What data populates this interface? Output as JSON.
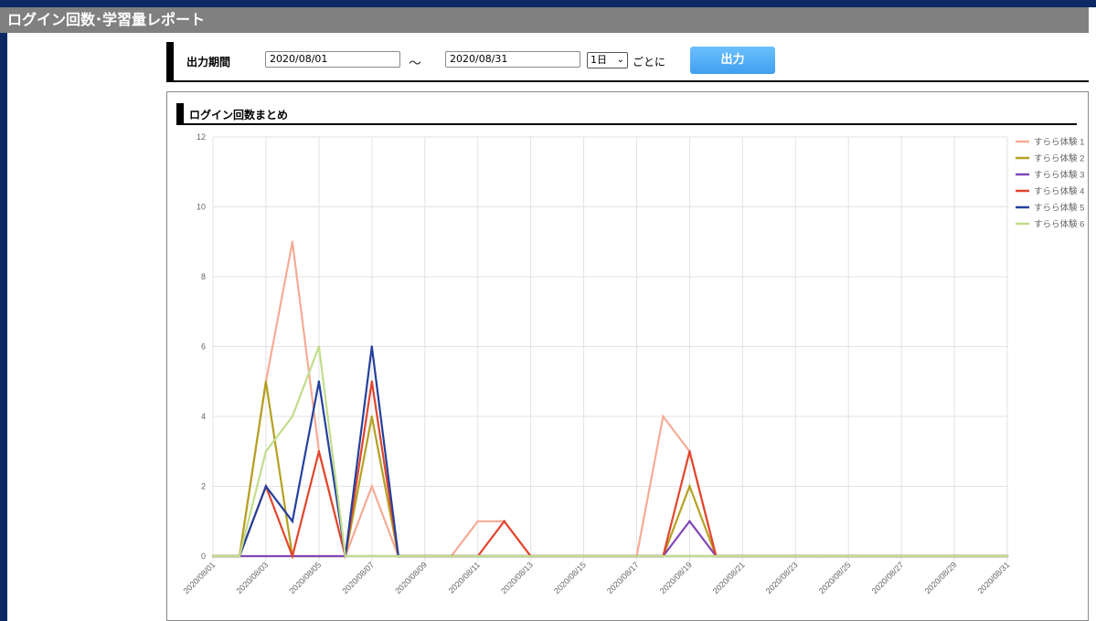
{
  "page": {
    "title": "ログイン回数･学習量レポート"
  },
  "filter": {
    "period_label": "出力期間",
    "start_date": "2020/08/01",
    "tilde": "～",
    "end_date": "2020/08/31",
    "interval_value": "1日",
    "per_label": "ごとに",
    "output_button": "出力"
  },
  "section": {
    "title": "ログイン回数まとめ"
  },
  "colors": {
    "series": [
      "#f6ab96",
      "#b5a022",
      "#8146b8",
      "#e2452d",
      "#24409c",
      "#c1dd8c"
    ],
    "grid": "#e3e3e3",
    "text": "#666666"
  },
  "chart_data": {
    "type": "line",
    "ylim": [
      0,
      12
    ],
    "yticks": [
      0,
      2,
      4,
      6,
      8,
      10,
      12
    ],
    "legend_position": "right",
    "grid": true,
    "x": [
      "2020/08/01",
      "2020/08/02",
      "2020/08/03",
      "2020/08/04",
      "2020/08/05",
      "2020/08/06",
      "2020/08/07",
      "2020/08/08",
      "2020/08/09",
      "2020/08/10",
      "2020/08/11",
      "2020/08/12",
      "2020/08/13",
      "2020/08/14",
      "2020/08/15",
      "2020/08/16",
      "2020/08/17",
      "2020/08/18",
      "2020/08/19",
      "2020/08/20",
      "2020/08/21",
      "2020/08/22",
      "2020/08/23",
      "2020/08/24",
      "2020/08/25",
      "2020/08/26",
      "2020/08/27",
      "2020/08/28",
      "2020/08/29",
      "2020/08/30",
      "2020/08/31"
    ],
    "xtick_labels": [
      "2020/08/01",
      "2020/08/03",
      "2020/08/05",
      "2020/08/07",
      "2020/08/09",
      "2020/08/11",
      "2020/08/13",
      "2020/08/15",
      "2020/08/17",
      "2020/08/19",
      "2020/08/21",
      "2020/08/23",
      "2020/08/25",
      "2020/08/27",
      "2020/08/29",
      "2020/08/31"
    ],
    "series": [
      {
        "name": "すらら体験 1",
        "values": [
          0,
          0,
          5,
          9,
          3,
          0,
          2,
          0,
          0,
          0,
          1,
          1,
          0,
          0,
          0,
          0,
          0,
          4,
          3,
          0,
          0,
          0,
          0,
          0,
          0,
          0,
          0,
          0,
          0,
          0,
          0
        ]
      },
      {
        "name": "すらら体験 2",
        "values": [
          0,
          0,
          5,
          0,
          0,
          0,
          4,
          0,
          0,
          0,
          0,
          0,
          0,
          0,
          0,
          0,
          0,
          0,
          2,
          0,
          0,
          0,
          0,
          0,
          0,
          0,
          0,
          0,
          0,
          0,
          0
        ]
      },
      {
        "name": "すらら体験 3",
        "values": [
          0,
          0,
          0,
          0,
          0,
          0,
          0,
          0,
          0,
          0,
          0,
          0,
          0,
          0,
          0,
          0,
          0,
          0,
          1,
          0,
          0,
          0,
          0,
          0,
          0,
          0,
          0,
          0,
          0,
          0,
          0
        ]
      },
      {
        "name": "すらら体験 4",
        "values": [
          0,
          0,
          2,
          0,
          3,
          0,
          5,
          0,
          0,
          0,
          0,
          1,
          0,
          0,
          0,
          0,
          0,
          0,
          3,
          0,
          0,
          0,
          0,
          0,
          0,
          0,
          0,
          0,
          0,
          0,
          0
        ]
      },
      {
        "name": "すらら体験 5",
        "values": [
          0,
          0,
          2,
          1,
          5,
          0,
          6,
          0,
          0,
          0,
          0,
          0,
          0,
          0,
          0,
          0,
          0,
          0,
          0,
          0,
          0,
          0,
          0,
          0,
          0,
          0,
          0,
          0,
          0,
          0,
          0
        ]
      },
      {
        "name": "すらら体験 6",
        "values": [
          0,
          0,
          3,
          4,
          6,
          0,
          0,
          0,
          0,
          0,
          0,
          0,
          0,
          0,
          0,
          0,
          0,
          0,
          0,
          0,
          0,
          0,
          0,
          0,
          0,
          0,
          0,
          0,
          0,
          0,
          0
        ]
      }
    ]
  }
}
